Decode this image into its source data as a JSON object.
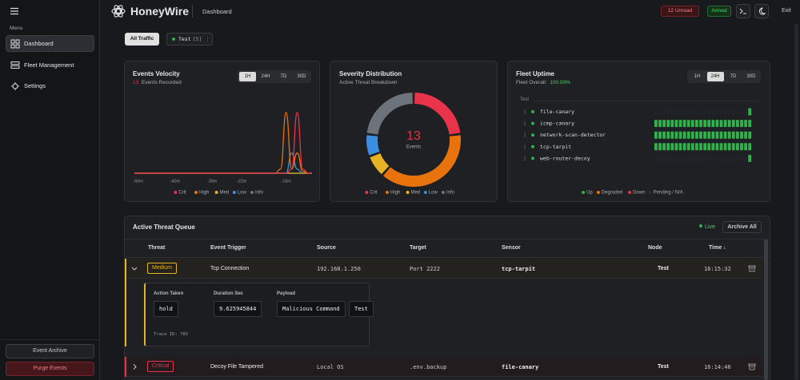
{
  "sidebar": {
    "menu_label": "Menu",
    "nav": [
      "Dashboard",
      "Fleet Management",
      "Settings"
    ],
    "active_nav": 0,
    "buttons": {
      "archive": "Event Archive",
      "purge": "Purge Events"
    }
  },
  "header": {
    "brand": "HoneyWire",
    "page": "Dashboard",
    "unread": "12 Unread",
    "status": "Armed",
    "exit": "Exit"
  },
  "filters": {
    "all": "All Traffic",
    "chip": "Test",
    "chip_count": "[5]"
  },
  "velocity": {
    "title": "Events Velocity",
    "count": 13,
    "count_label": "Events Recorded",
    "ranges": [
      "1H",
      "24H",
      "7D",
      "30D"
    ],
    "active_range": 0,
    "chart": {
      "type": "line",
      "x": [
        -51,
        -13,
        -11.5,
        -10,
        -8.5,
        -7,
        -5.5,
        -4,
        -3
      ],
      "xlim": [
        -51,
        -3
      ],
      "ylim": [
        0,
        3.3
      ],
      "xticks": [
        {
          "value": -50,
          "label": "-50m"
        },
        {
          "value": -40,
          "label": "-40m"
        },
        {
          "value": -30,
          "label": "-30m"
        },
        {
          "value": -22,
          "label": "-22m"
        },
        {
          "value": -10,
          "label": "-10m"
        }
      ],
      "series": [
        {
          "name": "Crit",
          "color": "#e8334a",
          "values": [
            0,
            0,
            0,
            0,
            0.2,
            3,
            0.2,
            0,
            0
          ]
        },
        {
          "name": "High",
          "color": "#e8720c",
          "values": [
            0,
            0,
            0.2,
            3,
            0.2,
            1,
            0.1,
            0,
            0
          ]
        },
        {
          "name": "Med",
          "color": "#e6b325",
          "values": [
            0,
            0,
            0,
            0,
            0,
            0,
            0,
            0,
            0
          ]
        },
        {
          "name": "Low",
          "color": "#3b8fe0",
          "values": [
            0,
            0,
            0,
            0,
            1,
            0.2,
            0,
            0,
            0
          ]
        },
        {
          "name": "Info",
          "color": "#6c737b",
          "values": [
            0,
            0,
            0,
            0,
            0,
            0,
            0,
            0,
            0
          ]
        }
      ]
    }
  },
  "severity": {
    "title": "Severity Distribution",
    "subtitle": "Active Threat Breakdown",
    "chart": {
      "type": "donut",
      "categories": [
        "Crit",
        "High",
        "Med",
        "Low",
        "Info"
      ],
      "values": [
        3,
        5,
        1,
        1,
        3
      ],
      "colors": [
        "#e8334a",
        "#e8720c",
        "#e6b325",
        "#3b8fe0",
        "#6c737b"
      ],
      "total": 13,
      "total_label": "Events"
    }
  },
  "uptime": {
    "title": "Fleet Uptime",
    "subtitle": "Fleet Overall:",
    "overall": "100.00%",
    "ranges": [
      "1H",
      "24H",
      "7D",
      "30D"
    ],
    "active_range": 1,
    "group": "Test",
    "status_colors": [
      "#1f2327",
      "#2fb34a"
    ],
    "sensors": [
      {
        "name": "file-canary",
        "history": [
          0,
          0,
          0,
          0,
          0,
          0,
          0,
          0,
          0,
          0,
          0,
          0,
          0,
          0,
          0,
          0,
          0,
          0,
          0,
          0,
          0,
          0,
          0,
          1
        ]
      },
      {
        "name": "icmp-canary",
        "history": [
          1,
          1,
          1,
          1,
          1,
          1,
          1,
          1,
          1,
          1,
          1,
          1,
          1,
          1,
          1,
          1,
          1,
          1,
          1,
          1,
          1,
          1,
          1,
          1
        ]
      },
      {
        "name": "network-scan-detector",
        "history": [
          1,
          1,
          1,
          1,
          1,
          1,
          1,
          1,
          1,
          1,
          1,
          1,
          1,
          1,
          1,
          1,
          1,
          1,
          1,
          1,
          1,
          1,
          1,
          1
        ]
      },
      {
        "name": "tcp-tarpit",
        "history": [
          1,
          1,
          1,
          1,
          1,
          1,
          1,
          1,
          1,
          1,
          1,
          1,
          1,
          1,
          1,
          1,
          1,
          1,
          1,
          1,
          1,
          1,
          1,
          1
        ]
      },
      {
        "name": "web-router-decoy",
        "history": [
          0,
          0,
          0,
          0,
          0,
          0,
          0,
          0,
          0,
          0,
          0,
          0,
          0,
          0,
          0,
          0,
          0,
          0,
          0,
          0,
          0,
          0,
          0,
          1
        ]
      }
    ],
    "legend": [
      {
        "name": "Up",
        "color": "#2fb34a"
      },
      {
        "name": "Degraded",
        "color": "#e8720c"
      },
      {
        "name": "Down",
        "color": "#e8334a"
      },
      {
        "name": "Pending / N/A",
        "color": "#2a2e33"
      }
    ]
  },
  "queue": {
    "title": "Active Threat Queue",
    "live": "Live",
    "archive_all": "Archive All",
    "columns": [
      "Threat",
      "Event Trigger",
      "Source",
      "Target",
      "Sensor",
      "Node",
      "Time ↓"
    ],
    "rows": [
      {
        "severity": "Medium",
        "color": "#e6b325",
        "trigger": "Tcp Connection",
        "source": "192.168.1.250",
        "target": "Port 2222",
        "sensor": "tcp-tarpit",
        "node": "Test",
        "time": "16:15:32",
        "expanded": true,
        "details": {
          "fields": [
            {
              "label": "Action Taken",
              "values": [
                "hold"
              ]
            },
            {
              "label": "Duration Sec",
              "values": [
                "9.625945844"
              ]
            },
            {
              "label": "Payload",
              "values": [
                "Malicious Command",
                "Test"
              ]
            }
          ],
          "trace": "Trace ID: 785"
        }
      },
      {
        "severity": "Critical",
        "color": "#e8334a",
        "trigger": "Decoy File Tampered",
        "source": "Local OS",
        "target": ".env.backup",
        "sensor": "file-canary",
        "node": "Test",
        "time": "16:14:46",
        "expanded": false
      }
    ]
  }
}
